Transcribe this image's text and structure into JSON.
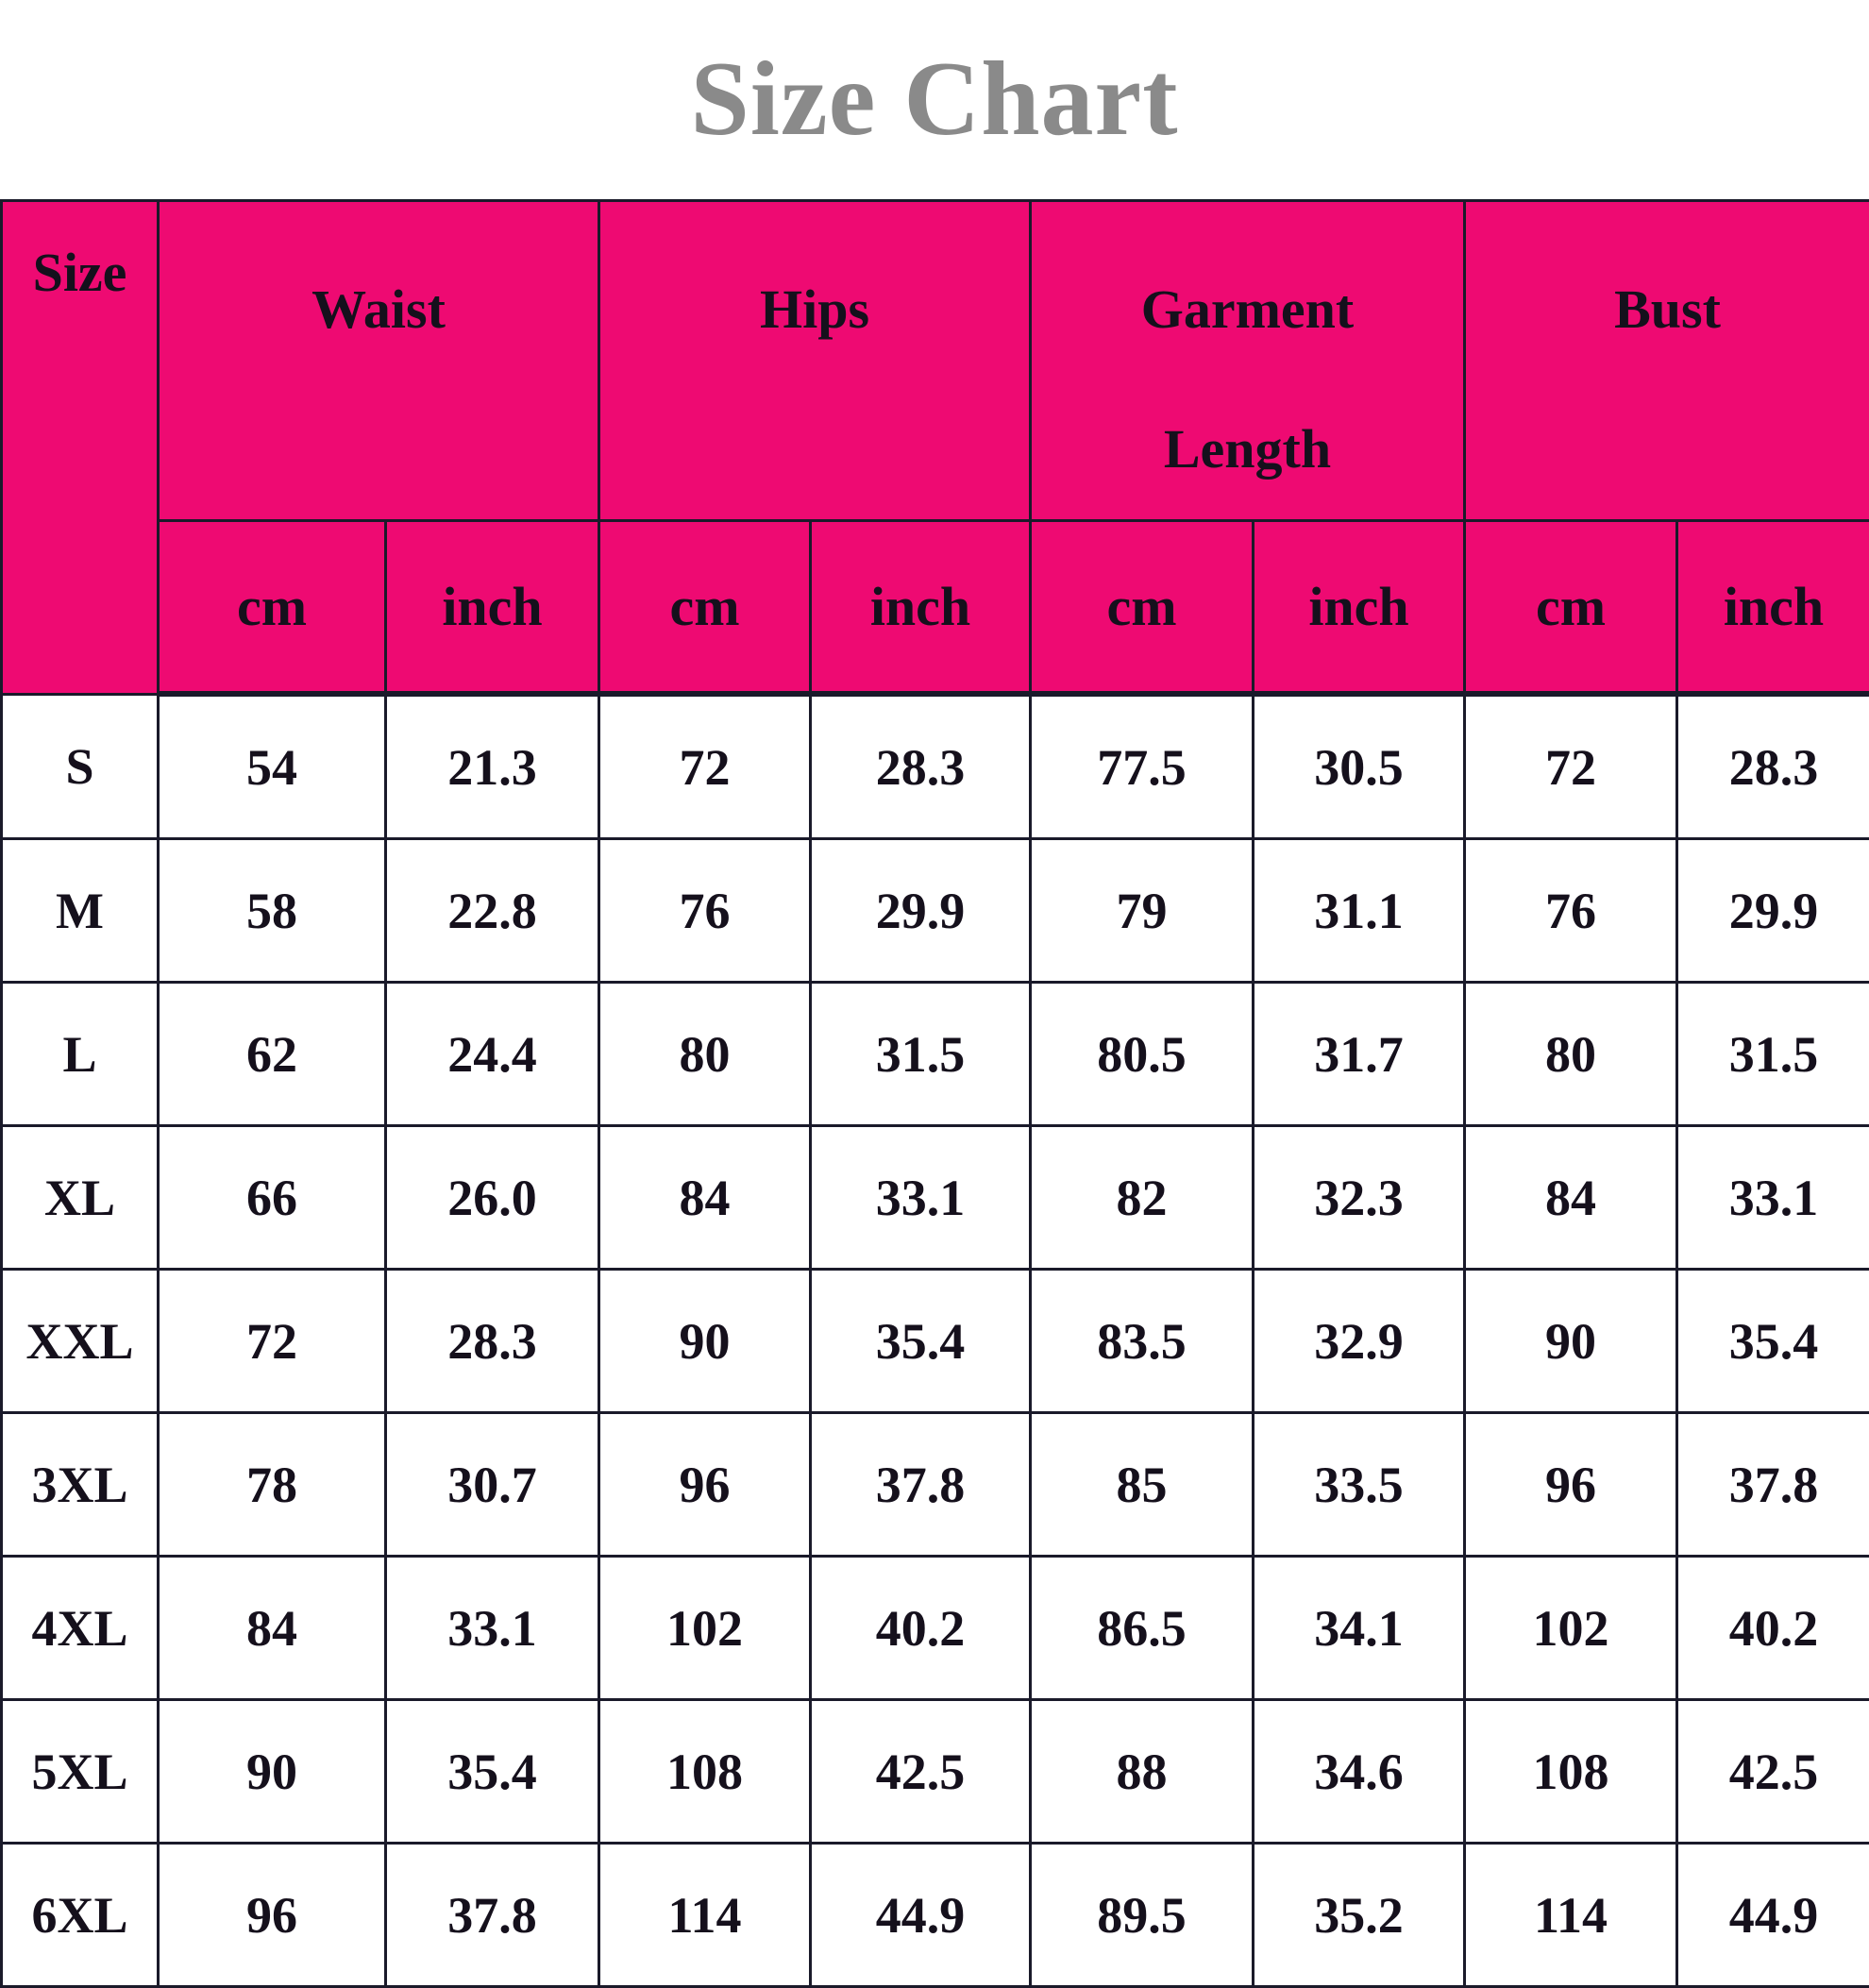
{
  "title": "Size Chart",
  "header_color": "#ee0a72",
  "columns": {
    "size": "Size",
    "groups": [
      {
        "label_lines": [
          "Waist"
        ]
      },
      {
        "label_lines": [
          "Hips"
        ]
      },
      {
        "label_lines": [
          "Garment",
          "Length"
        ]
      },
      {
        "label_lines": [
          "Bust"
        ]
      }
    ],
    "units": [
      "cm",
      "inch"
    ]
  },
  "rows": [
    [
      "S",
      "54",
      "21.3",
      "72",
      "28.3",
      "77.5",
      "30.5",
      "72",
      "28.3"
    ],
    [
      "M",
      "58",
      "22.8",
      "76",
      "29.9",
      "79",
      "31.1",
      "76",
      "29.9"
    ],
    [
      "L",
      "62",
      "24.4",
      "80",
      "31.5",
      "80.5",
      "31.7",
      "80",
      "31.5"
    ],
    [
      "XL",
      "66",
      "26.0",
      "84",
      "33.1",
      "82",
      "32.3",
      "84",
      "33.1"
    ],
    [
      "XXL",
      "72",
      "28.3",
      "90",
      "35.4",
      "83.5",
      "32.9",
      "90",
      "35.4"
    ],
    [
      "3XL",
      "78",
      "30.7",
      "96",
      "37.8",
      "85",
      "33.5",
      "96",
      "37.8"
    ],
    [
      "4XL",
      "84",
      "33.1",
      "102",
      "40.2",
      "86.5",
      "34.1",
      "102",
      "40.2"
    ],
    [
      "5XL",
      "90",
      "35.4",
      "108",
      "42.5",
      "88",
      "34.6",
      "108",
      "42.5"
    ],
    [
      "6XL",
      "96",
      "37.8",
      "114",
      "44.9",
      "89.5",
      "35.2",
      "114",
      "44.9"
    ]
  ]
}
